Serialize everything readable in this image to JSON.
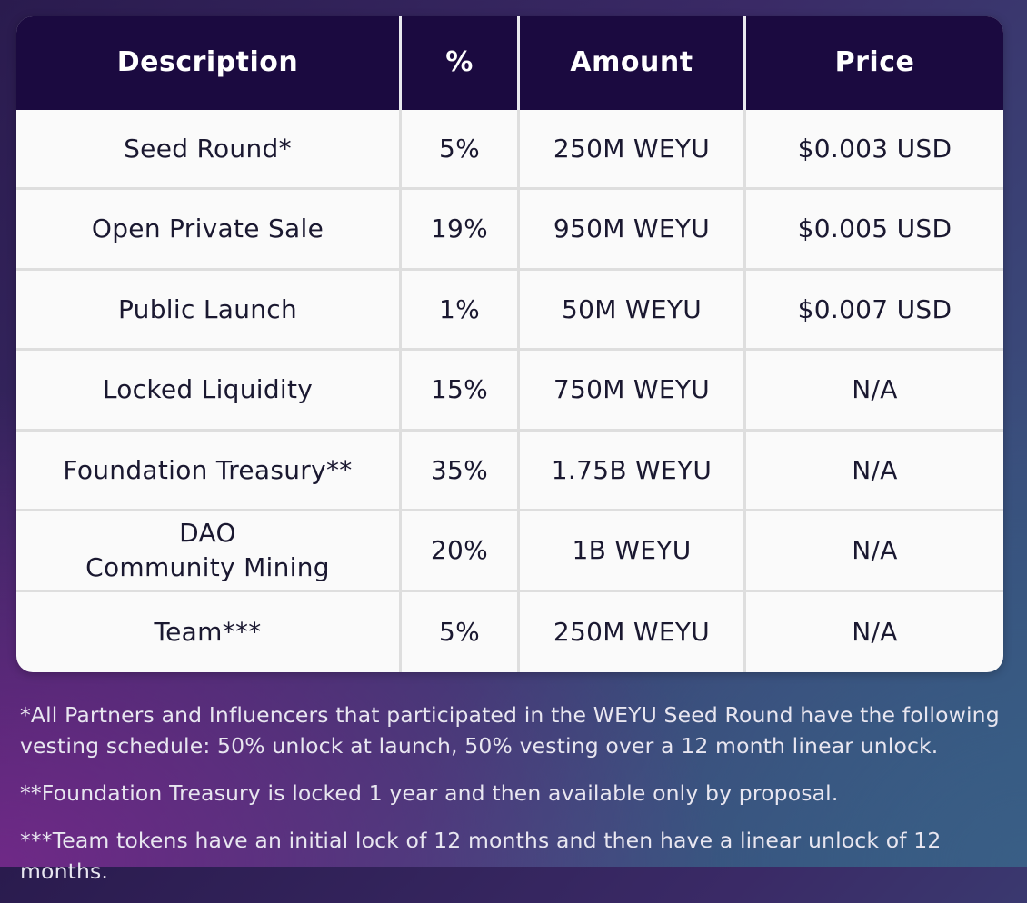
{
  "table": {
    "headers": [
      "Description",
      "%",
      "Amount",
      "Price"
    ],
    "rows": [
      {
        "description": [
          "Seed Round*"
        ],
        "percent": "5%",
        "amount": "250M WEYU",
        "price": "$0.003 USD"
      },
      {
        "description": [
          "Open Private Sale"
        ],
        "percent": "19%",
        "amount": "950M WEYU",
        "price": "$0.005 USD"
      },
      {
        "description": [
          "Public Launch"
        ],
        "percent": "1%",
        "amount": "50M WEYU",
        "price": "$0.007 USD"
      },
      {
        "description": [
          "Locked Liquidity"
        ],
        "percent": "15%",
        "amount": "750M WEYU",
        "price": "N/A"
      },
      {
        "description": [
          "Foundation Treasury**"
        ],
        "percent": "35%",
        "amount": "1.75B WEYU",
        "price": "N/A"
      },
      {
        "description": [
          "DAO",
          "Community Mining"
        ],
        "percent": "20%",
        "amount": "1B WEYU",
        "price": "N/A"
      },
      {
        "description": [
          "Team***"
        ],
        "percent": "5%",
        "amount": "250M WEYU",
        "price": "N/A"
      }
    ]
  },
  "notes": [
    "*All Partners and Influencers that participated in the WEYU Seed Round have the following vesting schedule: 50% unlock at launch, 50% vesting over a 12 month linear unlock.",
    "**Foundation Treasury is locked 1 year and then available only by proposal.",
    "***Team tokens have an initial lock of 12 months and then have a linear unlock of 12 months."
  ],
  "colors": {
    "header_bg": "#1b0a40",
    "header_text": "#ffffff",
    "cell_bg": "#fafafa",
    "cell_text": "#1a1830",
    "grid_line": "#dedede"
  }
}
